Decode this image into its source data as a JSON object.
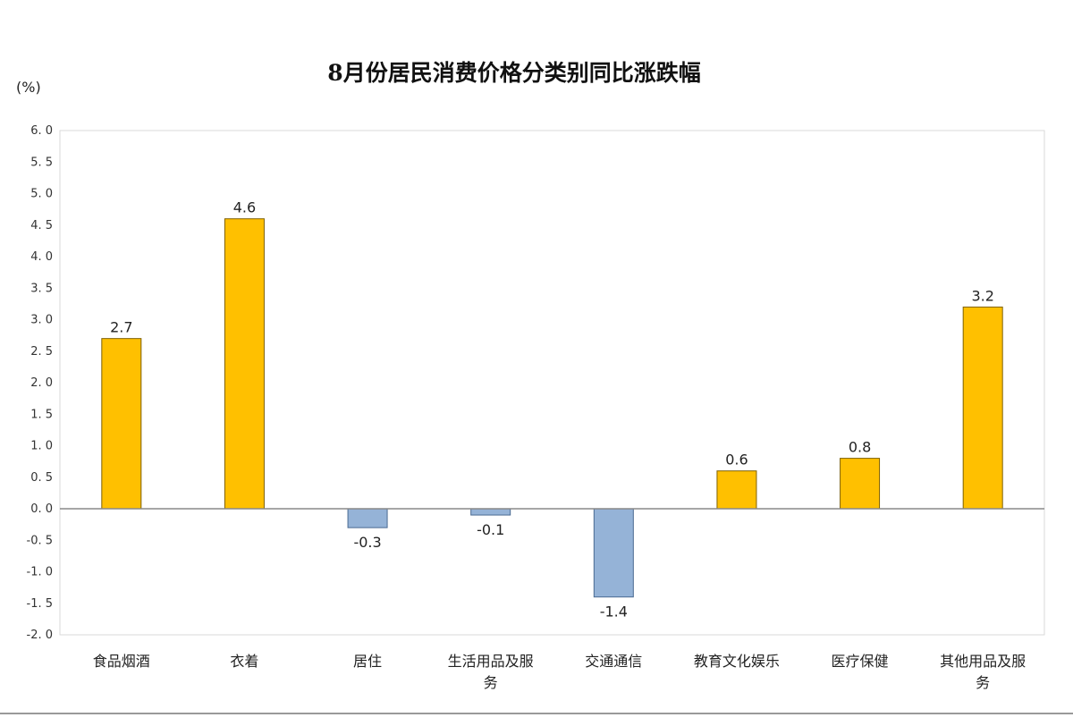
{
  "chart_data": {
    "type": "bar",
    "title": "8月份居民消费价格分类别同比涨跌幅",
    "unit_label": "(%)",
    "xlabel": "",
    "ylabel": "",
    "ylim": [
      -2.0,
      6.0
    ],
    "ytick_step": 0.5,
    "ytick_labels": [
      "6. 0",
      "5. 5",
      "5. 0",
      "4. 5",
      "4. 0",
      "3. 5",
      "3. 0",
      "2. 5",
      "2. 0",
      "1. 5",
      "1. 0",
      "0. 5",
      "0. 0",
      "-0. 5",
      "-1. 0",
      "-1. 5",
      "-2. 0"
    ],
    "categories": [
      [
        "食品烟酒"
      ],
      [
        "衣着"
      ],
      [
        "居住"
      ],
      [
        "生活用品及服",
        "务"
      ],
      [
        "交通通信"
      ],
      [
        "教育文化娱乐"
      ],
      [
        "医疗保健"
      ],
      [
        "其他用品及服",
        "务"
      ]
    ],
    "values": [
      2.7,
      4.6,
      -0.3,
      -0.1,
      -1.4,
      0.6,
      0.8,
      3.2
    ],
    "value_labels": [
      "2.7",
      "4.6",
      "-0.3",
      "-0.1",
      "-1.4",
      "0.6",
      "0.8",
      "3.2"
    ],
    "grid": false,
    "legend": "none",
    "colors": {
      "positive": "#FFC000",
      "positive_border": "#7F6000",
      "negative": "#95B3D7",
      "negative_border": "#4A6A92",
      "axis": "#888888",
      "frame": "#D9D9D9"
    }
  }
}
